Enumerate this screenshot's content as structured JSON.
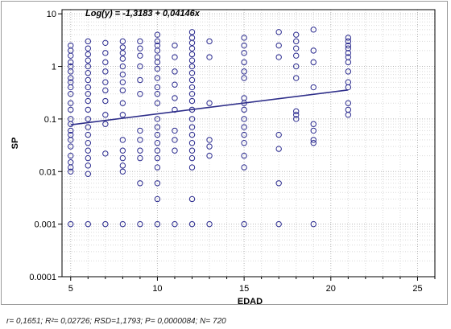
{
  "chart_data": {
    "type": "scatter",
    "equation": "Log(y) = -1,3183 + 0,04146x",
    "xlabel": "EDAD",
    "ylabel": "SP",
    "xlim": [
      4.5,
      26
    ],
    "ylim": [
      0.0001,
      12
    ],
    "log_y": true,
    "grid": true,
    "x_ticks": [
      5,
      10,
      15,
      20,
      25
    ],
    "y_ticks": [
      {
        "value": 0.0001,
        "label": "0.0001"
      },
      {
        "value": 0.001,
        "label": "0.001"
      },
      {
        "value": 0.01,
        "label": "0.01"
      },
      {
        "value": 0.1,
        "label": "0.1"
      },
      {
        "value": 1,
        "label": "1"
      },
      {
        "value": 10,
        "label": "10"
      }
    ],
    "regression": {
      "intercept": -1.3183,
      "slope": 0.04146,
      "x_range": [
        5,
        21
      ]
    },
    "marker_color": "#2b2b8f",
    "line_color": "#2f2f8a",
    "points": [
      {
        "x": 5,
        "y": 2.5
      },
      {
        "x": 5,
        "y": 2.0
      },
      {
        "x": 5,
        "y": 1.6
      },
      {
        "x": 5,
        "y": 1.2
      },
      {
        "x": 5,
        "y": 1.0
      },
      {
        "x": 5,
        "y": 0.8
      },
      {
        "x": 5,
        "y": 0.6
      },
      {
        "x": 5,
        "y": 0.5
      },
      {
        "x": 5,
        "y": 0.4
      },
      {
        "x": 5,
        "y": 0.3
      },
      {
        "x": 5,
        "y": 0.2
      },
      {
        "x": 5,
        "y": 0.15
      },
      {
        "x": 5,
        "y": 0.1
      },
      {
        "x": 5,
        "y": 0.08
      },
      {
        "x": 5,
        "y": 0.06
      },
      {
        "x": 5,
        "y": 0.05
      },
      {
        "x": 5,
        "y": 0.04
      },
      {
        "x": 5,
        "y": 0.03
      },
      {
        "x": 5,
        "y": 0.02
      },
      {
        "x": 5,
        "y": 0.015
      },
      {
        "x": 5,
        "y": 0.012
      },
      {
        "x": 5,
        "y": 0.01
      },
      {
        "x": 5,
        "y": 0.001
      },
      {
        "x": 6,
        "y": 3.0
      },
      {
        "x": 6,
        "y": 2.2
      },
      {
        "x": 6,
        "y": 1.7
      },
      {
        "x": 6,
        "y": 1.3
      },
      {
        "x": 6,
        "y": 1.0
      },
      {
        "x": 6,
        "y": 0.75
      },
      {
        "x": 6,
        "y": 0.55
      },
      {
        "x": 6,
        "y": 0.4
      },
      {
        "x": 6,
        "y": 0.3
      },
      {
        "x": 6,
        "y": 0.22
      },
      {
        "x": 6,
        "y": 0.15
      },
      {
        "x": 6,
        "y": 0.1
      },
      {
        "x": 6,
        "y": 0.07
      },
      {
        "x": 6,
        "y": 0.05
      },
      {
        "x": 6,
        "y": 0.035
      },
      {
        "x": 6,
        "y": 0.025
      },
      {
        "x": 6,
        "y": 0.018
      },
      {
        "x": 6,
        "y": 0.013
      },
      {
        "x": 6,
        "y": 0.009
      },
      {
        "x": 6,
        "y": 0.001
      },
      {
        "x": 7,
        "y": 2.8
      },
      {
        "x": 7,
        "y": 1.8
      },
      {
        "x": 7,
        "y": 1.2
      },
      {
        "x": 7,
        "y": 0.8
      },
      {
        "x": 7,
        "y": 0.5
      },
      {
        "x": 7,
        "y": 0.35
      },
      {
        "x": 7,
        "y": 0.22
      },
      {
        "x": 7,
        "y": 0.12
      },
      {
        "x": 7,
        "y": 0.08
      },
      {
        "x": 7,
        "y": 0.022
      },
      {
        "x": 7,
        "y": 0.001
      },
      {
        "x": 8,
        "y": 3.0
      },
      {
        "x": 8,
        "y": 2.3
      },
      {
        "x": 8,
        "y": 1.8
      },
      {
        "x": 8,
        "y": 1.4
      },
      {
        "x": 8,
        "y": 1.0
      },
      {
        "x": 8,
        "y": 0.7
      },
      {
        "x": 8,
        "y": 0.5
      },
      {
        "x": 8,
        "y": 0.35
      },
      {
        "x": 8,
        "y": 0.2
      },
      {
        "x": 8,
        "y": 0.12
      },
      {
        "x": 8,
        "y": 0.04
      },
      {
        "x": 8,
        "y": 0.025
      },
      {
        "x": 8,
        "y": 0.018
      },
      {
        "x": 8,
        "y": 0.013
      },
      {
        "x": 8,
        "y": 0.01
      },
      {
        "x": 8,
        "y": 0.001
      },
      {
        "x": 9,
        "y": 3.0
      },
      {
        "x": 9,
        "y": 2.2
      },
      {
        "x": 9,
        "y": 1.6
      },
      {
        "x": 9,
        "y": 1.0
      },
      {
        "x": 9,
        "y": 0.55
      },
      {
        "x": 9,
        "y": 0.3
      },
      {
        "x": 9,
        "y": 0.06
      },
      {
        "x": 9,
        "y": 0.04
      },
      {
        "x": 9,
        "y": 0.025
      },
      {
        "x": 9,
        "y": 0.018
      },
      {
        "x": 9,
        "y": 0.006
      },
      {
        "x": 9,
        "y": 0.001
      },
      {
        "x": 10,
        "y": 4.0
      },
      {
        "x": 10,
        "y": 3.0
      },
      {
        "x": 10,
        "y": 2.5
      },
      {
        "x": 10,
        "y": 2.0
      },
      {
        "x": 10,
        "y": 1.5
      },
      {
        "x": 10,
        "y": 1.2
      },
      {
        "x": 10,
        "y": 0.9
      },
      {
        "x": 10,
        "y": 0.6
      },
      {
        "x": 10,
        "y": 0.4
      },
      {
        "x": 10,
        "y": 0.3
      },
      {
        "x": 10,
        "y": 0.2
      },
      {
        "x": 10,
        "y": 0.1
      },
      {
        "x": 10,
        "y": 0.07
      },
      {
        "x": 10,
        "y": 0.05
      },
      {
        "x": 10,
        "y": 0.035
      },
      {
        "x": 10,
        "y": 0.025
      },
      {
        "x": 10,
        "y": 0.018
      },
      {
        "x": 10,
        "y": 0.012
      },
      {
        "x": 10,
        "y": 0.006
      },
      {
        "x": 10,
        "y": 0.003
      },
      {
        "x": 10,
        "y": 0.001
      },
      {
        "x": 11,
        "y": 2.5
      },
      {
        "x": 11,
        "y": 1.5
      },
      {
        "x": 11,
        "y": 0.8
      },
      {
        "x": 11,
        "y": 0.45
      },
      {
        "x": 11,
        "y": 0.25
      },
      {
        "x": 11,
        "y": 0.15
      },
      {
        "x": 11,
        "y": 0.06
      },
      {
        "x": 11,
        "y": 0.04
      },
      {
        "x": 11,
        "y": 0.025
      },
      {
        "x": 11,
        "y": 0.001
      },
      {
        "x": 12,
        "y": 4.5
      },
      {
        "x": 12,
        "y": 3.5
      },
      {
        "x": 12,
        "y": 2.8
      },
      {
        "x": 12,
        "y": 2.2
      },
      {
        "x": 12,
        "y": 1.7
      },
      {
        "x": 12,
        "y": 1.3
      },
      {
        "x": 12,
        "y": 1.0
      },
      {
        "x": 12,
        "y": 0.75
      },
      {
        "x": 12,
        "y": 0.55
      },
      {
        "x": 12,
        "y": 0.4
      },
      {
        "x": 12,
        "y": 0.3
      },
      {
        "x": 12,
        "y": 0.22
      },
      {
        "x": 12,
        "y": 0.15
      },
      {
        "x": 12,
        "y": 0.1
      },
      {
        "x": 12,
        "y": 0.07
      },
      {
        "x": 12,
        "y": 0.05
      },
      {
        "x": 12,
        "y": 0.035
      },
      {
        "x": 12,
        "y": 0.025
      },
      {
        "x": 12,
        "y": 0.018
      },
      {
        "x": 12,
        "y": 0.012
      },
      {
        "x": 12,
        "y": 0.003
      },
      {
        "x": 12,
        "y": 0.001
      },
      {
        "x": 13,
        "y": 3.0
      },
      {
        "x": 13,
        "y": 1.5
      },
      {
        "x": 13,
        "y": 0.2
      },
      {
        "x": 13,
        "y": 0.04
      },
      {
        "x": 13,
        "y": 0.03
      },
      {
        "x": 13,
        "y": 0.02
      },
      {
        "x": 13,
        "y": 0.001
      },
      {
        "x": 15,
        "y": 3.5
      },
      {
        "x": 15,
        "y": 2.5
      },
      {
        "x": 15,
        "y": 1.8
      },
      {
        "x": 15,
        "y": 1.2
      },
      {
        "x": 15,
        "y": 0.8
      },
      {
        "x": 15,
        "y": 0.6
      },
      {
        "x": 15,
        "y": 0.25
      },
      {
        "x": 15,
        "y": 0.2
      },
      {
        "x": 15,
        "y": 0.15
      },
      {
        "x": 15,
        "y": 0.1
      },
      {
        "x": 15,
        "y": 0.07
      },
      {
        "x": 15,
        "y": 0.05
      },
      {
        "x": 15,
        "y": 0.035
      },
      {
        "x": 15,
        "y": 0.02
      },
      {
        "x": 15,
        "y": 0.012
      },
      {
        "x": 15,
        "y": 0.001
      },
      {
        "x": 17,
        "y": 4.5
      },
      {
        "x": 17,
        "y": 2.5
      },
      {
        "x": 17,
        "y": 1.5
      },
      {
        "x": 17,
        "y": 0.05
      },
      {
        "x": 17,
        "y": 0.027
      },
      {
        "x": 17,
        "y": 0.006
      },
      {
        "x": 17,
        "y": 0.001
      },
      {
        "x": 18,
        "y": 4.0
      },
      {
        "x": 18,
        "y": 3.0
      },
      {
        "x": 18,
        "y": 2.2
      },
      {
        "x": 18,
        "y": 1.6
      },
      {
        "x": 18,
        "y": 1.0
      },
      {
        "x": 18,
        "y": 0.6
      },
      {
        "x": 18,
        "y": 0.14
      },
      {
        "x": 18,
        "y": 0.12
      },
      {
        "x": 18,
        "y": 0.1
      },
      {
        "x": 19,
        "y": 5.0
      },
      {
        "x": 19,
        "y": 2.0
      },
      {
        "x": 19,
        "y": 1.2
      },
      {
        "x": 19,
        "y": 0.4
      },
      {
        "x": 19,
        "y": 0.08
      },
      {
        "x": 19,
        "y": 0.06
      },
      {
        "x": 19,
        "y": 0.04
      },
      {
        "x": 19,
        "y": 0.035
      },
      {
        "x": 19,
        "y": 0.001
      },
      {
        "x": 21,
        "y": 3.5
      },
      {
        "x": 21,
        "y": 3.0
      },
      {
        "x": 21,
        "y": 2.5
      },
      {
        "x": 21,
        "y": 2.2
      },
      {
        "x": 21,
        "y": 1.8
      },
      {
        "x": 21,
        "y": 1.5
      },
      {
        "x": 21,
        "y": 1.2
      },
      {
        "x": 21,
        "y": 0.8
      },
      {
        "x": 21,
        "y": 0.5
      },
      {
        "x": 21,
        "y": 0.4
      },
      {
        "x": 21,
        "y": 0.2
      },
      {
        "x": 21,
        "y": 0.15
      },
      {
        "x": 21,
        "y": 0.12
      }
    ]
  },
  "caption": "r= 0,1651; R²= 0,02726; RSD=1,1793; P= 0,0000084; N= 720"
}
